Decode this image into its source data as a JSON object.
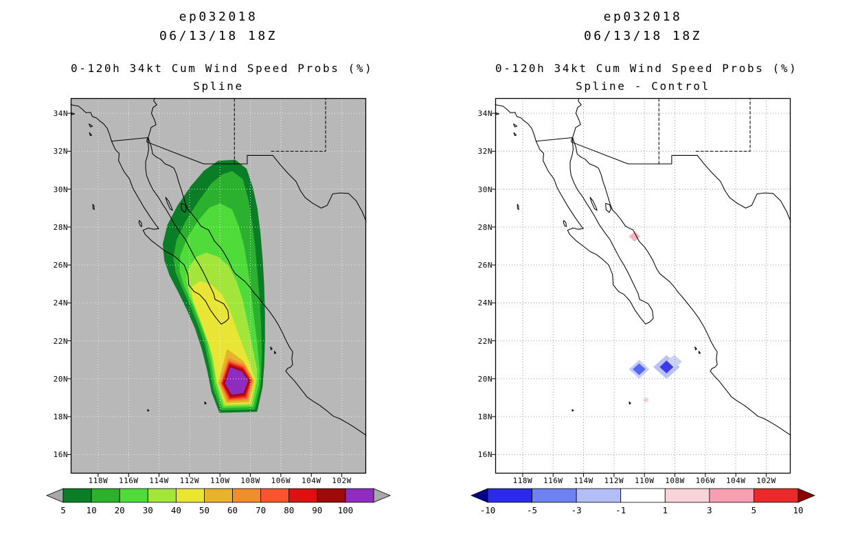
{
  "page": {
    "bg": "#ffffff"
  },
  "panels": [
    {
      "title1": "ep032018",
      "title2": "06/13/18 18Z",
      "heading": "0-120h 34kt Cum Wind Speed Probs (%)",
      "subheading": "Spline",
      "map": {
        "bg": "#b8b8b8",
        "grid_color": "#efefef",
        "lat_labels": [
          "34N",
          "32N",
          "30N",
          "28N",
          "26N",
          "24N",
          "22N",
          "20N",
          "18N",
          "16N"
        ],
        "lon_labels": [
          "118W",
          "116W",
          "114W",
          "112W",
          "110W",
          "108W",
          "106W",
          "104W",
          "102W"
        ]
      },
      "colorbar": {
        "labels": [
          "5",
          "10",
          "20",
          "30",
          "40",
          "50",
          "60",
          "70",
          "80",
          "90",
          "100"
        ],
        "colors": [
          "#0a7d26",
          "#2bb12e",
          "#4fdc3a",
          "#a4e53c",
          "#e8e535",
          "#e7b32c",
          "#ef8e2a",
          "#f8552e",
          "#dd1111",
          "#9e0a0a",
          "#8f2bbf"
        ],
        "left_arrow": "#a8a8a8",
        "right_arrow": "#a8a8a8"
      }
    },
    {
      "title1": "ep032018",
      "title2": "06/13/18 18Z",
      "heading": "0-120h 34kt Cum Wind Speed Probs (%)",
      "subheading": "Spline - Control",
      "map": {
        "bg": "#ffffff",
        "grid_color": "#9a9a9a",
        "lat_labels": [
          "34N",
          "32N",
          "30N",
          "28N",
          "26N",
          "24N",
          "22N",
          "20N",
          "18N",
          "16N"
        ],
        "lon_labels": [
          "118W",
          "116W",
          "114W",
          "112W",
          "110W",
          "108W",
          "106W",
          "104W",
          "102W"
        ]
      },
      "anomalies": [
        {
          "lon": -110.65,
          "lat": 27.5,
          "w": 0.75,
          "h": 0.55,
          "color": "#f5b6c0"
        },
        {
          "lon": -110.35,
          "lat": 20.5,
          "w": 0.85,
          "h": 0.62,
          "color": "#5468f0",
          "halos": [
            {
              "w": 1.35,
              "h": 1.0,
              "color": "#c6cdf8"
            }
          ]
        },
        {
          "lon": -108.55,
          "lat": 20.62,
          "w": 0.9,
          "h": 0.68,
          "color": "#3c3cee",
          "halos": [
            {
              "w": 1.75,
              "h": 1.25,
              "color": "#b9c2f6"
            },
            {
              "dlon": 0.5,
              "dlat": 0.28,
              "w": 1.05,
              "h": 0.72,
              "color": "#ccd3f8"
            }
          ]
        },
        {
          "lon": -109.9,
          "lat": 18.88,
          "w": 0.4,
          "h": 0.3,
          "color": "#f8ccd4"
        }
      ],
      "colorbar": {
        "labels": [
          "-10",
          "-5",
          "-3",
          "-1",
          "1",
          "3",
          "5",
          "10"
        ],
        "colors": [
          "#2a2ae8",
          "#6f82f2",
          "#b3bef7",
          "#ffffff",
          "#f9d3da",
          "#f59fb0",
          "#e82a2a"
        ],
        "left_arrow": "#00008b",
        "right_arrow": "#8b0000"
      }
    }
  ],
  "chart_data": [
    {
      "type": "heatmap",
      "subtype": "filled-contour cumulative probability map over geographic coastlines",
      "panel": "left",
      "title": "ep032018",
      "init_time": "06/13/18 18Z",
      "heading": "0-120h 34kt Cum Wind Speed Probs (%)",
      "method": "Spline",
      "lon_ticks_deg_west": [
        118,
        116,
        114,
        112,
        110,
        108,
        106,
        104,
        102
      ],
      "lat_ticks_deg_north": [
        34,
        32,
        30,
        28,
        26,
        24,
        22,
        20,
        18,
        16
      ],
      "prob_levels_pct": [
        5,
        10,
        20,
        30,
        40,
        50,
        60,
        70,
        80,
        90,
        100
      ],
      "palette": [
        "#0a7d26",
        "#2bb12e",
        "#4fdc3a",
        "#a4e53c",
        "#e8e535",
        "#e7b32c",
        "#ef8e2a",
        "#f8552e",
        "#dd1111",
        "#9e0a0a",
        "#8f2bbf"
      ],
      "swath": {
        "description": "Elongated NNW-SSE wind probability swath over Baja California Sur, the Gulf of California and Sinaloa coast",
        "northern_extent_lat_n": 31.5,
        "southern_extent_lat_n": 18.3,
        "max_center": {
          "lon_w": 108.9,
          "lat_n": 19.9,
          "value_pct": 100
        }
      },
      "contour_northern_extents": [
        {
          "level_pct": 5,
          "lat_n": 31.5
        },
        {
          "level_pct": 10,
          "lat_n": 30.9
        },
        {
          "level_pct": 20,
          "lat_n": 29.2
        },
        {
          "level_pct": 30,
          "lat_n": 26.6
        },
        {
          "level_pct": 40,
          "lat_n": 25.1
        },
        {
          "level_pct": 50,
          "lat_n": 21.5
        },
        {
          "level_pct": 60,
          "lat_n": 21.0
        },
        {
          "level_pct": 70,
          "lat_n": 20.9
        },
        {
          "level_pct": 80,
          "lat_n": 20.8
        },
        {
          "level_pct": 90,
          "lat_n": 20.7
        },
        {
          "level_pct": 100,
          "lat_n": 20.55
        }
      ],
      "legend": {
        "position": "bottom",
        "unit": "%"
      }
    },
    {
      "type": "heatmap",
      "subtype": "difference map (spline minus control)",
      "panel": "right",
      "title": "ep032018",
      "init_time": "06/13/18 18Z",
      "heading": "0-120h 34kt Cum Wind Speed Probs (%)",
      "method": "Spline - Control",
      "lon_ticks_deg_west": [
        118,
        116,
        114,
        112,
        110,
        108,
        106,
        104,
        102
      ],
      "lat_ticks_deg_north": [
        34,
        32,
        30,
        28,
        26,
        24,
        22,
        20,
        18,
        16
      ],
      "diff_levels_pct": [
        -10,
        -5,
        -3,
        -1,
        1,
        3,
        5,
        10
      ],
      "palette": [
        "#2a2ae8",
        "#6f82f2",
        "#b3bef7",
        "#ffffff",
        "#f9d3da",
        "#f59fb0",
        "#e82a2a"
      ],
      "anomalies": [
        {
          "lon_w": 110.65,
          "lat_n": 27.5,
          "sign": "positive",
          "approx_value_pct": 2
        },
        {
          "lon_w": 110.35,
          "lat_n": 20.5,
          "sign": "negative",
          "approx_value_pct": -4
        },
        {
          "lon_w": 108.55,
          "lat_n": 20.6,
          "sign": "negative",
          "approx_value_pct": -6
        },
        {
          "lon_w": 109.9,
          "lat_n": 18.9,
          "sign": "positive",
          "approx_value_pct": 1
        }
      ],
      "legend": {
        "position": "bottom",
        "unit": "%"
      }
    }
  ]
}
